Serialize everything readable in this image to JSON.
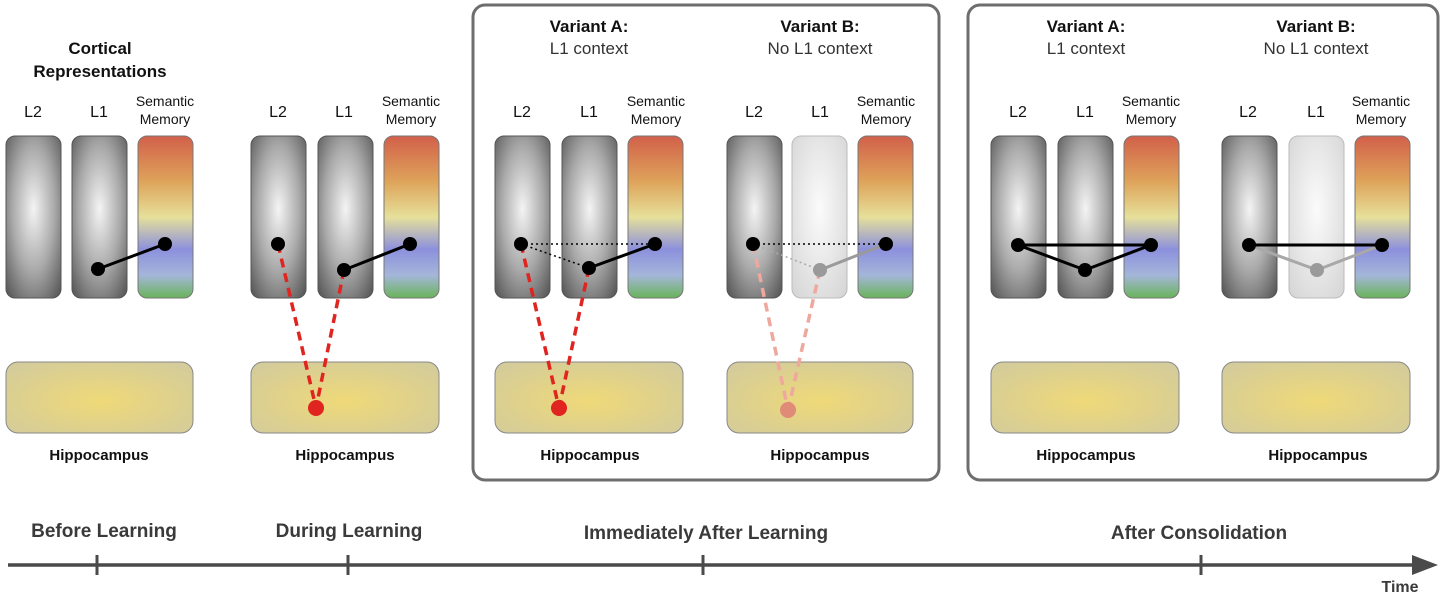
{
  "cortical_title": [
    "Cortical",
    "Representations"
  ],
  "labels": {
    "l2": "L2",
    "l1": "L1",
    "semantic": [
      "Semantic",
      "Memory"
    ],
    "hippocampus": "Hippocampus"
  },
  "variants": {
    "a_title": "Variant A:",
    "a_sub": "L1 context",
    "b_title": "Variant B:",
    "b_sub": "No L1 context"
  },
  "timeline": {
    "phases": [
      "Before Learning",
      "During Learning",
      "Immediately After Learning",
      "After Consolidation"
    ],
    "axis_label": "Time"
  },
  "colors": {
    "hippocampal_trace": "#e0241f",
    "links": "#000000",
    "box_border": "#6e6e6e",
    "axis": "#4a4a4a"
  }
}
